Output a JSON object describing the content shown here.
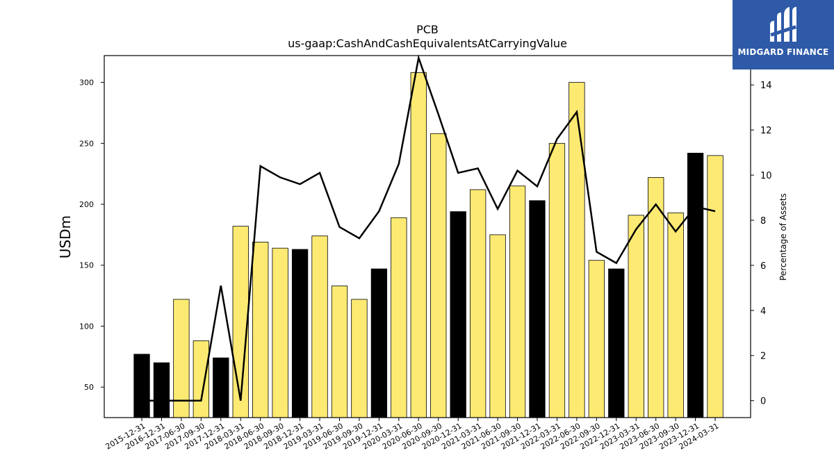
{
  "logo": {
    "text": "MIDGARD FINANCE",
    "color": "#2e5aa8"
  },
  "chart_data": {
    "type": "bar",
    "title": "PCB",
    "subtitle": "us-gaap:CashAndCashEquivalentsAtCarryingValue",
    "ylabel": "USDm",
    "y2label": "Percentage of Assets",
    "ylim": [
      25,
      322
    ],
    "y2lim": [
      -0.75,
      15.3
    ],
    "yticks": [
      50,
      100,
      150,
      200,
      250,
      300
    ],
    "y2ticks": [
      0,
      2,
      4,
      6,
      8,
      10,
      12,
      14
    ],
    "categories": [
      "2015-12-31",
      "2016-12-31",
      "2017-06-30",
      "2017-09-30",
      "2017-12-31",
      "2018-03-31",
      "2018-06-30",
      "2018-09-30",
      "2018-12-31",
      "2019-03-31",
      "2019-06-30",
      "2019-09-30",
      "2019-12-31",
      "2020-03-31",
      "2020-06-30",
      "2020-09-30",
      "2020-12-31",
      "2021-03-31",
      "2021-06-30",
      "2021-09-30",
      "2021-12-31",
      "2022-03-31",
      "2022-06-30",
      "2022-09-30",
      "2022-12-31",
      "2023-03-31",
      "2023-06-30",
      "2023-09-30",
      "2023-12-31",
      "2024-03-31"
    ],
    "series": [
      {
        "type": "bar",
        "values": [
          77,
          70,
          122,
          88,
          74,
          182,
          169,
          164,
          163,
          174,
          133,
          122,
          147,
          189,
          308,
          258,
          194,
          212,
          175,
          215,
          203,
          250,
          300,
          154,
          147,
          191,
          222,
          193,
          242,
          240
        ],
        "highlight": [
          true,
          true,
          false,
          false,
          true,
          false,
          false,
          false,
          true,
          false,
          false,
          false,
          true,
          false,
          false,
          false,
          true,
          false,
          false,
          false,
          true,
          false,
          false,
          false,
          true,
          false,
          false,
          false,
          true,
          false
        ],
        "color": "#fdea72",
        "highlight_color": "#000000"
      },
      {
        "type": "line",
        "axis": "right",
        "values": [
          0,
          0,
          0,
          0,
          5.1,
          0,
          10.4,
          9.9,
          9.6,
          10.1,
          7.7,
          7.2,
          8.4,
          10.5,
          15.2,
          12.7,
          10.1,
          10.3,
          8.5,
          10.2,
          9.5,
          11.6,
          12.8,
          6.6,
          6.1,
          7.6,
          8.7,
          7.5,
          8.6,
          8.4
        ],
        "color": "#000000"
      }
    ],
    "grid": false
  }
}
